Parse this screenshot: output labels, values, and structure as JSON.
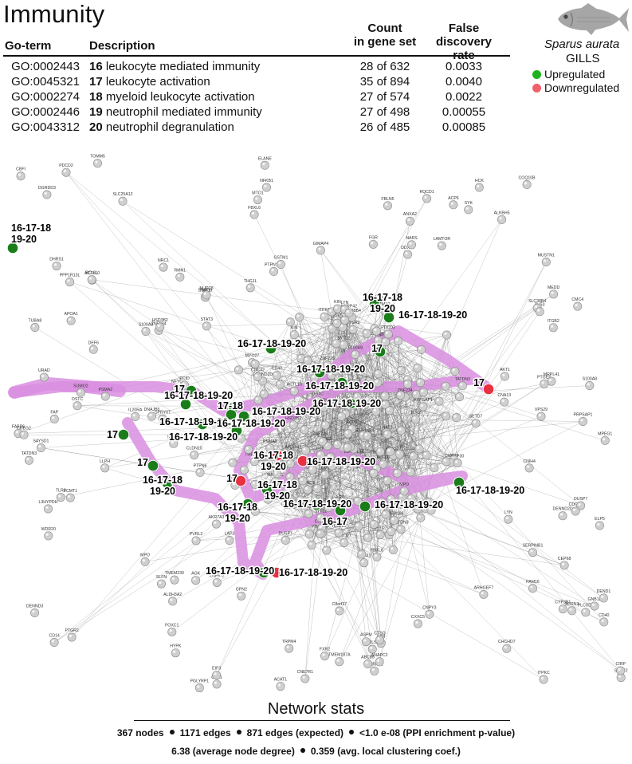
{
  "title": "Immunity",
  "table": {
    "headers": {
      "goterm": "Go-term",
      "description": "Description",
      "count_line1": "Count",
      "count_line2": "in gene set",
      "fdr_line1": "False discovery",
      "fdr_line2": "rate"
    },
    "rows": [
      {
        "go": "GO:0002443",
        "num": "16",
        "desc": " leukocyte mediated immunity",
        "count": "28 of 632",
        "fdr": "0.0033"
      },
      {
        "go": "GO:0045321",
        "num": "17",
        "desc": " leukocyte activation",
        "count": "35 of 894",
        "fdr": "0.0040"
      },
      {
        "go": "GO:0002274",
        "num": "18",
        "desc": " myeloid leukocyte activation",
        "count": "27 of 574",
        "fdr": "0.0022"
      },
      {
        "go": "GO:0002446",
        "num": "19",
        "desc": " neutrophil mediated immunity",
        "count": "27 of 498",
        "fdr": "0.00055"
      },
      {
        "go": "GO:0043312",
        "num": "20",
        "desc": " neutrophil degranulation",
        "count": "26 of 485",
        "fdr": "0.00085"
      }
    ]
  },
  "legend": {
    "species": "Sparus aurata",
    "tissue": "GILLS",
    "upregulated": "Upregulated",
    "downregulated": "Downregulated",
    "up_color": "#1db31d",
    "down_color": "#f0606a",
    "icon": "fish-icon"
  },
  "network": {
    "highlight_color": "#d98ee0",
    "up_color": "#1a7d1a",
    "down_color": "#e83040",
    "neutral_color": "#cfcfcf",
    "annotations": [
      {
        "text": "16-17-18",
        "text2": "19-20"
      },
      {
        "text": "16-17-18",
        "text2": "19-20"
      },
      {
        "text": "16-17-18-19-20"
      },
      {
        "text": "17"
      },
      {
        "text": "17"
      },
      {
        "text": "16-17-18-19-20"
      },
      {
        "text": "16-17-18-19-20"
      },
      {
        "text": "16-17-18-19-20"
      },
      {
        "text": "16-17-18-19-20"
      },
      {
        "text": "17"
      },
      {
        "text": "16-17-18-19-20"
      },
      {
        "text": "17-18"
      },
      {
        "text": "16-17-18-19-20"
      },
      {
        "text": "17"
      },
      {
        "text": "16-17-18-19-20"
      },
      {
        "text": "16-17-18-19-20"
      },
      {
        "text": "16-17-18-19-20"
      },
      {
        "text": "17"
      },
      {
        "text": "16-17-18",
        "text2": "19-20"
      },
      {
        "text": "16-17-18",
        "text2": "19-20"
      },
      {
        "text": "17"
      },
      {
        "text": "16-17-18-19-20"
      },
      {
        "text": "16-17-18",
        "text2": "19-20"
      },
      {
        "text": "16-17-18",
        "text2": "19-20"
      },
      {
        "text": "16-17-18-19-20"
      },
      {
        "text": "16-17"
      },
      {
        "text": "16-17-18-19-20"
      },
      {
        "text": "16-17-18-19-20"
      },
      {
        "text": "16-17-18-19-20"
      },
      {
        "text": "16-17-18-19-20"
      }
    ],
    "gene_labels": [
      "TATDN3",
      "CEP68",
      "TMEM218",
      "ZNF226",
      "ZNF574",
      "TMZO1",
      "KATD1",
      "TMEM184B",
      "TMEM254",
      "TMEM186",
      "EIF2AD",
      "ABTB1",
      "NKRP42",
      "SMYD2",
      "ZC3H12A",
      "PRSS27",
      "UHRC4L",
      "CIB1",
      "TMX2",
      "IMPAC1",
      "TMEM159",
      "SETD7",
      "TTC9C",
      "CHPT1",
      "SYTL2",
      "BTBB1L",
      "HBP1",
      "MYO27",
      "RSRP1",
      "CSDEPL1",
      "KIN",
      "NKIRAS2",
      "ARL5A",
      "L3HYPDH",
      "CNA13",
      "CNIH4",
      "OSTC",
      "MEDD",
      "FXR2",
      "EIF3",
      "MTO1",
      "MUSTN1",
      "LXN",
      "PCID",
      "SURF2",
      "ZNF234",
      "RQCD1",
      "COQ10B",
      "SLC38B4",
      "FABP6",
      "ARHGEF7",
      "APOA1",
      "ANAPC2",
      "SLFN",
      "FBXL6",
      "GPN2",
      "GNB1L",
      "ITPKC",
      "SCRN3",
      "LAMTOR",
      "PDCD2",
      "DEF6",
      "CHCHD7",
      "URAD",
      "CMC4",
      "DDX15",
      "TOMM5",
      "C8orf37",
      "RMN1",
      "SERPINB1",
      "FBLN5",
      "IL20RA",
      "CD40",
      "PTPN6",
      "LAP3",
      "ELP5",
      "NARS",
      "THG1L",
      "ZNF572",
      "TMEM187A",
      "MPEG1",
      "ACTL10",
      "SLC25A12",
      "CIRP",
      "DEND1",
      "CREG2",
      "LLPH",
      "DUSP7",
      "PLS3",
      "FAP",
      "ACP6",
      "PLCXD1",
      "GIMAP4",
      "BCL6L",
      "CLDN10",
      "ALKBH5",
      "SAYSD1",
      "ESAG9",
      "DGRDD3",
      "PRPSAP1",
      "DENND3",
      "NFYC",
      "CXXC5",
      "DNAJB5",
      "TRPM4",
      "PTGR2",
      "DHRS1",
      "ABCB6",
      "NAT1",
      "ALDH3A2",
      "CBFI",
      "MRPL41",
      "WDR20",
      "SPRY07",
      "DENND2D",
      "TUBA8",
      "HYPK",
      "FOXC1",
      "PAM16",
      "AKR7A3",
      "CNPY3",
      "NRC1",
      "TMEM230",
      "PTPN13P",
      "PPP1R13L",
      "NUDT8",
      "PVRL2",
      "CNE7R1",
      "PTGES",
      "HSD3B2",
      "CYP3B1",
      "GSTM1",
      "SAP30",
      "ACAT1",
      "CES1",
      "AGK",
      "VPS29",
      "SUMO2",
      "PSMA2",
      "ANXA2",
      "PCMT1",
      "ASPM",
      "PGLYRP1",
      "AKT1",
      "CDC42",
      "SYK",
      "FGR",
      "LYN",
      "HCK",
      "CTSG",
      "MPO",
      "ELANE",
      "S100A8",
      "S100A9",
      "ITGB2",
      "CD14",
      "TLR2",
      "NFKB1",
      "STAT3"
    ],
    "stats_title": "Network stats",
    "stats_line1": [
      "367 nodes",
      "1171 edges",
      "871 edges (expected)",
      "<1.0 e-08 (PPI enrichment p-value)"
    ],
    "stats_line2": [
      "6.38 (average node degree)",
      "0.359 (avg. local clustering coef.)"
    ]
  }
}
